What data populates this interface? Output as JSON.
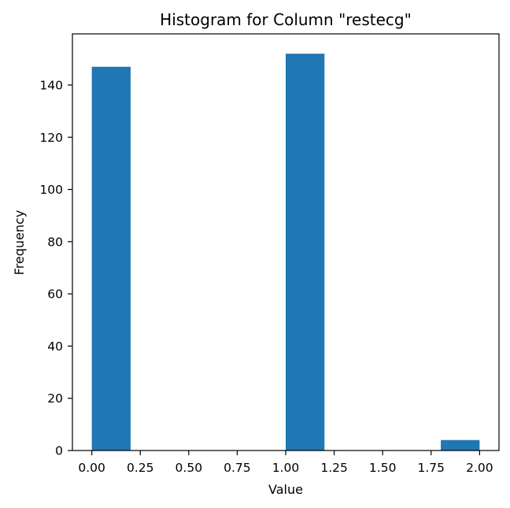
{
  "chart_data": {
    "type": "bar",
    "title": "Histogram for Column \"restecg\"",
    "xlabel": "Value",
    "ylabel": "Frequency",
    "xlim": [
      -0.1,
      2.1
    ],
    "ylim": [
      0,
      159.6
    ],
    "xticks": [
      "0.00",
      "0.25",
      "0.50",
      "0.75",
      "1.00",
      "1.25",
      "1.50",
      "1.75",
      "2.00"
    ],
    "yticks": [
      "0",
      "20",
      "40",
      "60",
      "80",
      "100",
      "120",
      "140"
    ],
    "bins": [
      {
        "x0": 0.0,
        "x1": 0.2,
        "value": 147
      },
      {
        "x0": 1.0,
        "x1": 1.2,
        "value": 152
      },
      {
        "x0": 1.8,
        "x1": 2.0,
        "value": 4
      }
    ],
    "grid": false,
    "bar_color": "#1f77b4"
  }
}
